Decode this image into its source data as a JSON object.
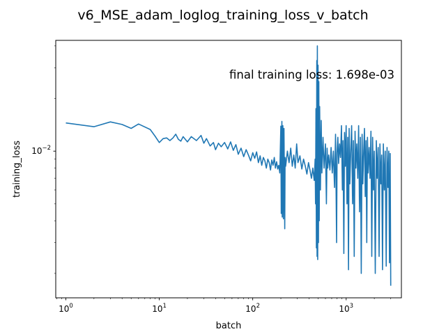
{
  "chart_data": {
    "type": "line",
    "title": "v6_MSE_adam_loglog_training_loss_v_batch",
    "xlabel": "batch",
    "ylabel": "training_loss",
    "xscale": "log",
    "yscale": "log",
    "xlim": [
      0.78,
      3900
    ],
    "ylim": [
      0.00145,
      0.043
    ],
    "grid": false,
    "legend": "none",
    "annotation": "final training loss: 1.698e-03",
    "x_ticks": [
      {
        "value": 1,
        "base": "10",
        "exp": "0"
      },
      {
        "value": 10,
        "base": "10",
        "exp": "1"
      },
      {
        "value": 100,
        "base": "10",
        "exp": "2"
      },
      {
        "value": 1000,
        "base": "10",
        "exp": "3"
      }
    ],
    "y_ticks": [
      {
        "value": 0.01,
        "base": "10",
        "exp": "−2"
      }
    ],
    "series": [
      {
        "color": "#1f77b4",
        "points": [
          [
            1,
            0.0145
          ],
          [
            2,
            0.0138
          ],
          [
            3,
            0.0147
          ],
          [
            4,
            0.0142
          ],
          [
            5,
            0.0135
          ],
          [
            6,
            0.0143
          ],
          [
            8,
            0.0133
          ],
          [
            9,
            0.0122
          ],
          [
            10,
            0.0112
          ],
          [
            11,
            0.0118
          ],
          [
            12,
            0.0119
          ],
          [
            13,
            0.0115
          ],
          [
            14,
            0.0119
          ],
          [
            15,
            0.0125
          ],
          [
            16,
            0.0117
          ],
          [
            17,
            0.0114
          ],
          [
            18,
            0.0121
          ],
          [
            20,
            0.0113
          ],
          [
            22,
            0.0121
          ],
          [
            25,
            0.0115
          ],
          [
            28,
            0.0123
          ],
          [
            30,
            0.0111
          ],
          [
            32,
            0.0118
          ],
          [
            35,
            0.0107
          ],
          [
            38,
            0.0112
          ],
          [
            40,
            0.0102
          ],
          [
            43,
            0.0111
          ],
          [
            46,
            0.0106
          ],
          [
            50,
            0.0112
          ],
          [
            54,
            0.0103
          ],
          [
            58,
            0.0113
          ],
          [
            62,
            0.0101
          ],
          [
            66,
            0.0109
          ],
          [
            70,
            0.0096
          ],
          [
            75,
            0.0104
          ],
          [
            80,
            0.0093
          ],
          [
            85,
            0.0102
          ],
          [
            90,
            0.0095
          ],
          [
            95,
            0.0088
          ],
          [
            100,
            0.0098
          ],
          [
            105,
            0.0091
          ],
          [
            110,
            0.0099
          ],
          [
            115,
            0.0086
          ],
          [
            120,
            0.0094
          ],
          [
            125,
            0.0083
          ],
          [
            130,
            0.0092
          ],
          [
            135,
            0.0088
          ],
          [
            140,
            0.008
          ],
          [
            145,
            0.009
          ],
          [
            150,
            0.0086
          ],
          [
            155,
            0.0078
          ],
          [
            160,
            0.0089
          ],
          [
            165,
            0.0083
          ],
          [
            170,
            0.0092
          ],
          [
            175,
            0.008
          ],
          [
            180,
            0.0087
          ],
          [
            185,
            0.0079
          ],
          [
            190,
            0.0083
          ],
          [
            195,
            0.0075
          ],
          [
            200,
            0.0139
          ],
          [
            202,
            0.0044
          ],
          [
            205,
            0.0148
          ],
          [
            207,
            0.0042
          ],
          [
            210,
            0.014
          ],
          [
            213,
            0.0041
          ],
          [
            216,
            0.0135
          ],
          [
            220,
            0.0036
          ],
          [
            222,
            0.0092
          ],
          [
            225,
            0.0082
          ],
          [
            235,
            0.01
          ],
          [
            245,
            0.0086
          ],
          [
            255,
            0.0104
          ],
          [
            265,
            0.0082
          ],
          [
            275,
            0.0095
          ],
          [
            285,
            0.008
          ],
          [
            295,
            0.011
          ],
          [
            305,
            0.0086
          ],
          [
            320,
            0.0094
          ],
          [
            335,
            0.0079
          ],
          [
            350,
            0.009
          ],
          [
            365,
            0.0082
          ],
          [
            380,
            0.0074
          ],
          [
            395,
            0.0086
          ],
          [
            410,
            0.0078
          ],
          [
            425,
            0.007
          ],
          [
            440,
            0.008
          ],
          [
            455,
            0.0068
          ],
          [
            465,
            0.009
          ],
          [
            470,
            0.005
          ],
          [
            475,
            0.0175
          ],
          [
            480,
            0.0028
          ],
          [
            485,
            0.033
          ],
          [
            488,
            0.0025
          ],
          [
            492,
            0.04
          ],
          [
            496,
            0.0024
          ],
          [
            500,
            0.031
          ],
          [
            505,
            0.003
          ],
          [
            510,
            0.025
          ],
          [
            515,
            0.004
          ],
          [
            520,
            0.018
          ],
          [
            530,
            0.006
          ],
          [
            540,
            0.015
          ],
          [
            550,
            0.0075
          ],
          [
            565,
            0.012
          ],
          [
            580,
            0.008
          ],
          [
            600,
            0.011
          ],
          [
            615,
            0.005
          ],
          [
            625,
            0.0104
          ],
          [
            635,
            0.008
          ],
          [
            650,
            0.0095
          ],
          [
            670,
            0.0078
          ],
          [
            690,
            0.0105
          ],
          [
            710,
            0.0075
          ],
          [
            730,
            0.01
          ],
          [
            750,
            0.0062
          ],
          [
            770,
            0.0125
          ],
          [
            790,
            0.003
          ],
          [
            800,
            0.0098
          ],
          [
            815,
            0.012
          ],
          [
            830,
            0.0085
          ],
          [
            850,
            0.011
          ],
          [
            870,
            0.0092
          ],
          [
            890,
            0.014
          ],
          [
            910,
            0.006
          ],
          [
            925,
            0.0115
          ],
          [
            945,
            0.0026
          ],
          [
            960,
            0.0128
          ],
          [
            980,
            0.0082
          ],
          [
            1000,
            0.014
          ],
          [
            1020,
            0.005
          ],
          [
            1040,
            0.012
          ],
          [
            1060,
            0.0021
          ],
          [
            1075,
            0.0135
          ],
          [
            1095,
            0.0065
          ],
          [
            1120,
            0.01
          ],
          [
            1145,
            0.014
          ],
          [
            1170,
            0.005
          ],
          [
            1195,
            0.0115
          ],
          [
            1220,
            0.0025
          ],
          [
            1245,
            0.013
          ],
          [
            1270,
            0.008
          ],
          [
            1300,
            0.011
          ],
          [
            1330,
            0.007
          ],
          [
            1360,
            0.014
          ],
          [
            1390,
            0.0045
          ],
          [
            1420,
            0.012
          ],
          [
            1450,
            0.002
          ],
          [
            1480,
            0.0125
          ],
          [
            1510,
            0.0065
          ],
          [
            1540,
            0.01
          ],
          [
            1570,
            0.0135
          ],
          [
            1600,
            0.0055
          ],
          [
            1630,
            0.0115
          ],
          [
            1660,
            0.003
          ],
          [
            1690,
            0.012
          ],
          [
            1720,
            0.0075
          ],
          [
            1760,
            0.0105
          ],
          [
            1800,
            0.007
          ],
          [
            1840,
            0.013
          ],
          [
            1880,
            0.0025
          ],
          [
            1920,
            0.012
          ],
          [
            1960,
            0.006
          ],
          [
            2000,
            0.01
          ],
          [
            2050,
            0.002
          ],
          [
            2100,
            0.0115
          ],
          [
            2150,
            0.007
          ],
          [
            2200,
            0.0105
          ],
          [
            2250,
            0.0025
          ],
          [
            2300,
            0.011
          ],
          [
            2350,
            0.0065
          ],
          [
            2400,
            0.0095
          ],
          [
            2450,
            0.0021
          ],
          [
            2500,
            0.011
          ],
          [
            2560,
            0.006
          ],
          [
            2620,
            0.01
          ],
          [
            2680,
            0.0022
          ],
          [
            2740,
            0.0105
          ],
          [
            2800,
            0.0062
          ],
          [
            2860,
            0.01
          ],
          [
            2910,
            0.0023
          ],
          [
            2960,
            0.0097
          ],
          [
            3000,
            0.0017
          ]
        ]
      }
    ]
  }
}
